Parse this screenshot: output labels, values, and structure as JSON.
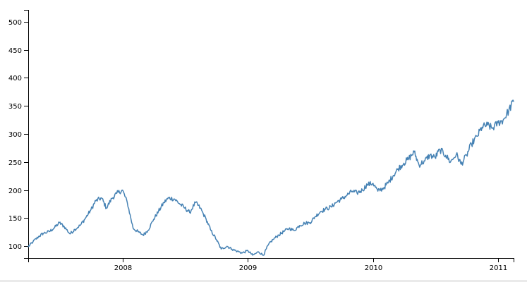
{
  "chart_data": {
    "type": "line",
    "title": "",
    "xlabel": "",
    "ylabel": "",
    "grid": false,
    "legend": "none",
    "colors": {
      "series": "#4682b4",
      "axis": "#000000",
      "background": "#ffffff"
    },
    "xlim": [
      "2007-04-01",
      "2011-02-15"
    ],
    "ylim": [
      79,
      521
    ],
    "x_ticks": [
      {
        "value": "2008-01-01",
        "label": "2008"
      },
      {
        "value": "2009-01-01",
        "label": "2009"
      },
      {
        "value": "2010-01-01",
        "label": "2010"
      },
      {
        "value": "2011-01-01",
        "label": "2011"
      }
    ],
    "y_ticks": [
      100,
      150,
      200,
      250,
      300,
      350,
      400,
      450,
      500
    ],
    "series": [
      {
        "x": [
          "2007-04-01",
          "2007-04-15",
          "2007-05-01",
          "2007-05-15",
          "2007-06-01",
          "2007-06-15",
          "2007-07-01",
          "2007-07-15",
          "2007-08-01",
          "2007-08-15",
          "2007-09-01",
          "2007-09-15",
          "2007-10-01",
          "2007-10-15",
          "2007-11-01",
          "2007-11-15",
          "2007-12-01",
          "2007-12-15",
          "2008-01-01",
          "2008-01-15",
          "2008-02-01",
          "2008-02-15",
          "2008-03-01",
          "2008-03-15",
          "2008-04-01",
          "2008-04-15",
          "2008-05-01",
          "2008-05-15",
          "2008-06-01",
          "2008-06-15",
          "2008-07-01",
          "2008-07-15",
          "2008-08-01",
          "2008-08-15",
          "2008-09-01",
          "2008-09-15",
          "2008-10-01",
          "2008-10-15",
          "2008-11-01",
          "2008-11-15",
          "2008-12-01",
          "2008-12-15",
          "2009-01-01",
          "2009-01-15",
          "2009-02-01",
          "2009-02-15",
          "2009-03-01",
          "2009-03-15",
          "2009-04-01",
          "2009-04-15",
          "2009-05-01",
          "2009-05-15",
          "2009-06-01",
          "2009-06-15",
          "2009-07-01",
          "2009-07-15",
          "2009-08-01",
          "2009-08-15",
          "2009-09-01",
          "2009-09-15",
          "2009-10-01",
          "2009-10-15",
          "2009-11-01",
          "2009-11-15",
          "2009-12-01",
          "2009-12-15",
          "2010-01-01",
          "2010-01-15",
          "2010-02-01",
          "2010-02-15",
          "2010-03-01",
          "2010-03-15",
          "2010-04-01",
          "2010-04-15",
          "2010-05-01",
          "2010-05-15",
          "2010-06-01",
          "2010-06-15",
          "2010-07-01",
          "2010-07-15",
          "2010-08-01",
          "2010-08-15",
          "2010-09-01",
          "2010-09-15",
          "2010-10-01",
          "2010-10-15",
          "2010-11-01",
          "2010-11-15",
          "2010-12-01",
          "2010-12-15",
          "2011-01-01",
          "2011-01-15",
          "2011-02-01",
          "2011-02-15"
        ],
        "values": [
          99,
          108,
          117,
          123,
          126,
          132,
          142,
          135,
          122,
          130,
          138,
          150,
          165,
          181,
          186,
          168,
          185,
          194,
          200,
          178,
          132,
          126,
          120,
          128,
          148,
          162,
          178,
          186,
          184,
          176,
          168,
          160,
          178,
          168,
          148,
          128,
          112,
          95,
          100,
          95,
          91,
          88,
          92,
          84,
          90,
          84,
          102,
          112,
          120,
          126,
          132,
          128,
          137,
          141,
          142,
          152,
          162,
          166,
          170,
          178,
          184,
          190,
          198,
          195,
          200,
          210,
          212,
          198,
          204,
          214,
          226,
          238,
          248,
          256,
          268,
          245,
          252,
          262,
          258,
          272,
          262,
          250,
          264,
          246,
          262,
          282,
          296,
          312,
          316,
          310,
          320,
          324,
          342,
          358
        ]
      }
    ]
  }
}
